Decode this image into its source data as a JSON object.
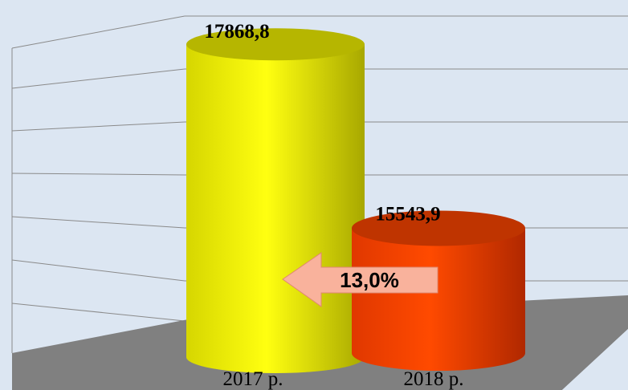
{
  "chart_data": {
    "type": "bar",
    "categories": [
      "2017 р.",
      "2018 р."
    ],
    "values": [
      17868.8,
      15543.9
    ],
    "value_labels": [
      "17868,8",
      "15543,9"
    ],
    "colors": [
      "#f2f200",
      "#ff4500"
    ],
    "ylim": [
      14000,
      18000
    ],
    "annotation": "13,0%"
  }
}
